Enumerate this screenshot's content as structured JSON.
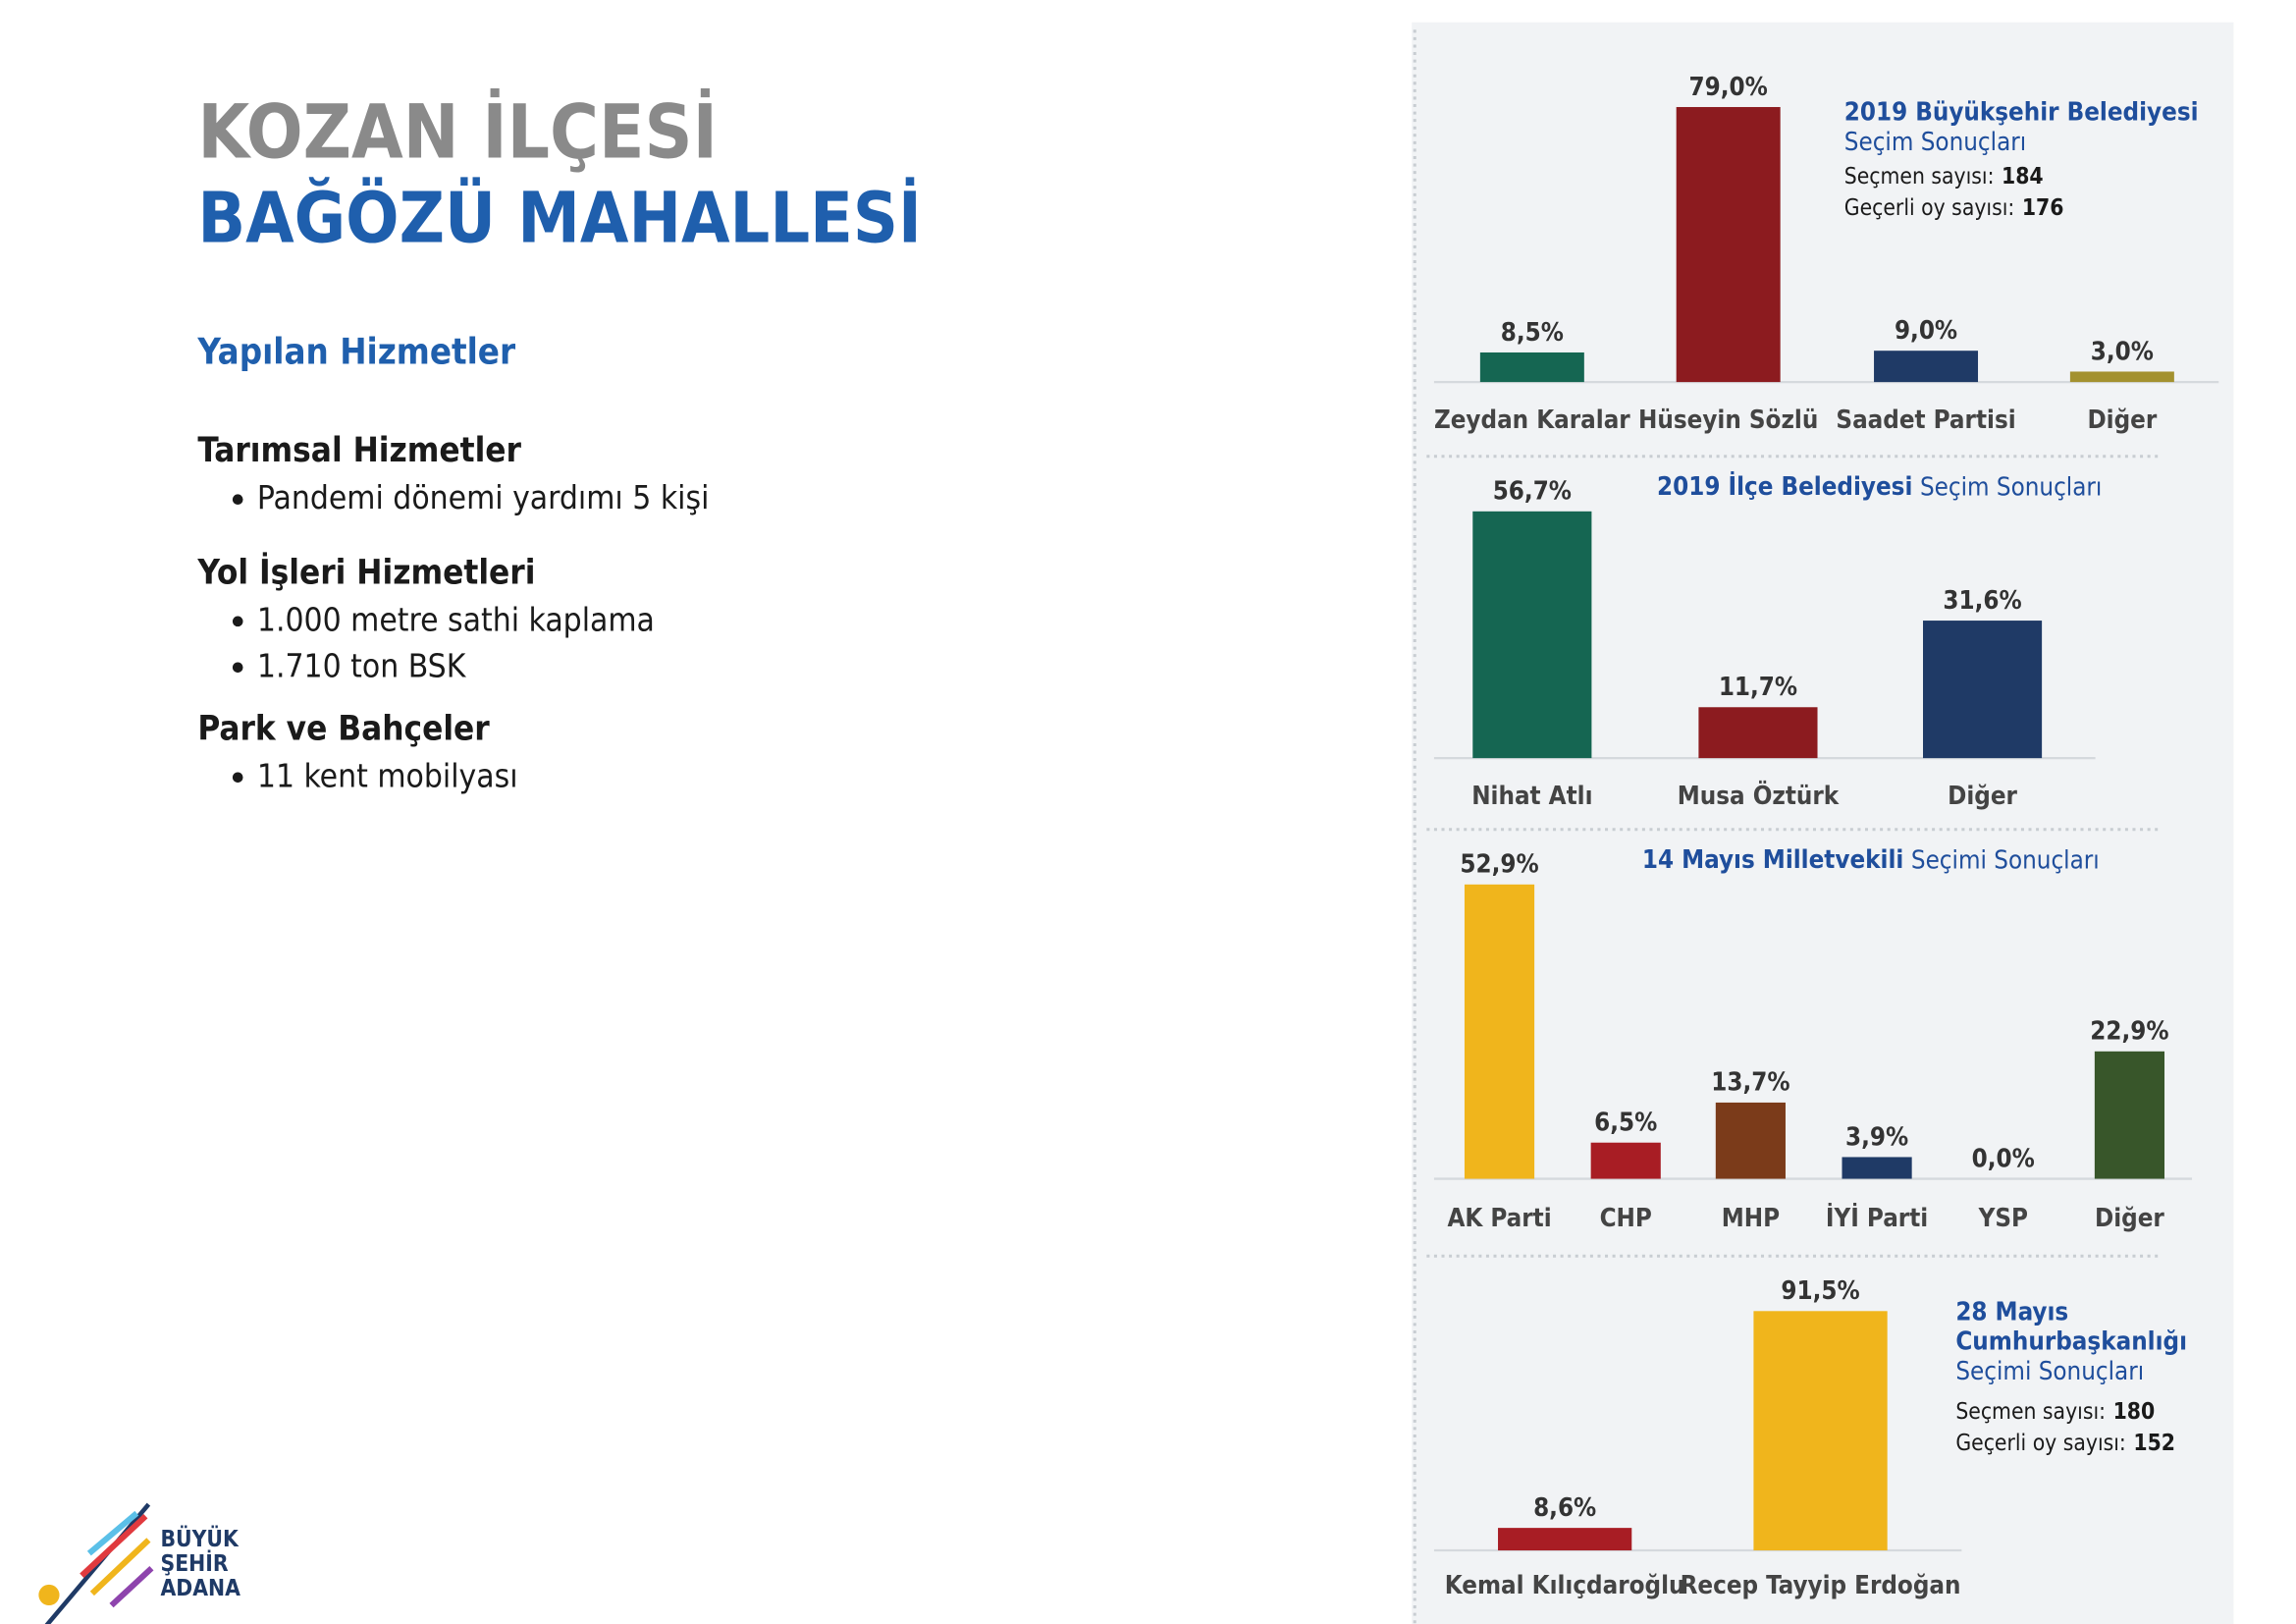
{
  "header": {
    "title": "KOZAN İLÇESİ",
    "subtitle": "BAĞÖZÜ MAHALLESİ"
  },
  "services": {
    "title": "Yapılan Hizmetler",
    "sections": [
      {
        "heading": "Tarımsal Hizmetler",
        "items": [
          "Pandemi dönemi yardımı 5 kişi"
        ]
      },
      {
        "heading": "Yol İşleri Hizmetleri",
        "items": [
          "1.000 metre sathi kaplama",
          "1.710 ton BSK"
        ]
      },
      {
        "heading": "Park ve Bahçeler",
        "items": [
          "11 kent mobilyası"
        ]
      }
    ]
  },
  "logo": {
    "lines": [
      "BÜYÜK",
      "ŞEHİR",
      "ADANA"
    ]
  },
  "chart_data": [
    {
      "type": "bar",
      "title": [
        "2019 Büyükşehir Belediyesi",
        "Seçim Sonuçları"
      ],
      "notes": [
        {
          "label": "Seçmen sayısı:",
          "value": 184
        },
        {
          "label": "Geçerli oy sayısı:",
          "value": 176
        }
      ],
      "categories": [
        "Zeydan Karalar",
        "Hüseyin Sözlü",
        "Saadet Partisi",
        "Diğer"
      ],
      "values": [
        8.5,
        79.0,
        9.0,
        3.0
      ],
      "value_labels": [
        "8,5%",
        "79,0%",
        "9,0%",
        "3,0%"
      ],
      "colors": [
        "#156652",
        "#8c1b1f",
        "#1f3a66",
        "#a3912f"
      ]
    },
    {
      "type": "bar",
      "title": [
        "2019 İlçe Belediyesi",
        "Seçim Sonuçları"
      ],
      "categories": [
        "Nihat Atlı",
        "Musa Öztürk",
        "Diğer"
      ],
      "values": [
        56.7,
        11.7,
        31.6
      ],
      "value_labels": [
        "56,7%",
        "11,7%",
        "31,6%"
      ],
      "colors": [
        "#156652",
        "#8c1b1f",
        "#1f3a66"
      ]
    },
    {
      "type": "bar",
      "title": [
        "14 Mayıs Milletvekili",
        "Seçimi Sonuçları"
      ],
      "categories": [
        "AK Parti",
        "CHP",
        "MHP",
        "İYİ Parti",
        "YSP",
        "Diğer"
      ],
      "values": [
        52.9,
        6.5,
        13.7,
        3.9,
        0.0,
        22.9
      ],
      "value_labels": [
        "52,9%",
        "6,5%",
        "13,7%",
        "3,9%",
        "0,0%",
        "22,9%"
      ],
      "colors": [
        "#f0b51c",
        "#a81d24",
        "#7b3b1a",
        "#1f3a66",
        "#7b2a7f",
        "#38562a"
      ]
    },
    {
      "type": "bar",
      "title": [
        "28 Mayıs",
        "Cumhurbaşkanlığı",
        "Seçimi Sonuçları"
      ],
      "notes": [
        {
          "label": "Seçmen sayısı:",
          "value": 180
        },
        {
          "label": "Geçerli oy sayısı:",
          "value": 152
        }
      ],
      "categories": [
        "Kemal Kılıçdaroğlu",
        "Recep Tayyip Erdoğan"
      ],
      "values": [
        8.6,
        91.5
      ],
      "value_labels": [
        "8,6%",
        "91,5%"
      ],
      "colors": [
        "#a81d24",
        "#f0b51c"
      ]
    }
  ]
}
